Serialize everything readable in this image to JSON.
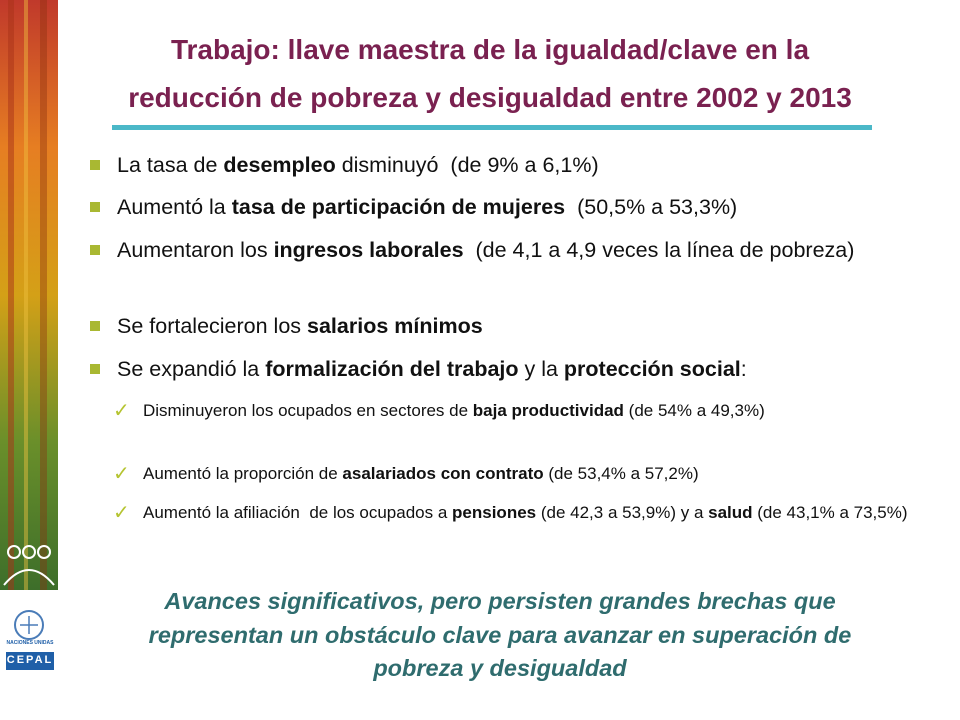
{
  "title": {
    "lines": [
      "Trabajo: llave maestra de la igualdad/clave en la",
      "reducción de pobreza y desigualdad entre 2002 y 2013"
    ]
  },
  "bullets": [
    {
      "level": 1,
      "parts": [
        {
          "text": "La tasa de "
        },
        {
          "text": "desempleo",
          "bold": true
        },
        {
          "text": " disminuyó  (de 9% a 6,1%)"
        }
      ]
    },
    {
      "level": 1,
      "parts": [
        {
          "text": "Aumentó la "
        },
        {
          "text": "tasa de participación de mujeres",
          "bold": true
        },
        {
          "text": "  (50,5% a 53,3%)"
        }
      ]
    },
    {
      "level": 1,
      "parts": [
        {
          "text": "Aumentaron los "
        },
        {
          "text": "ingresos laborales",
          "bold": true
        },
        {
          "text": "  (de 4,1 a 4,9 veces la línea de pobreza)"
        }
      ]
    },
    {
      "level": 1,
      "parts": [
        {
          "text": "Se fortalecieron los "
        },
        {
          "text": "salarios mínimos",
          "bold": true
        }
      ]
    },
    {
      "level": 1,
      "parts": [
        {
          "text": "Se expandió la "
        },
        {
          "text": "formalización del trabajo",
          "bold": true
        },
        {
          "text": " y la "
        },
        {
          "text": "protección social",
          "bold": true
        },
        {
          "text": ":"
        }
      ]
    },
    {
      "level": 2,
      "parts": [
        {
          "text": "Disminuyeron los ocupados en sectores de "
        },
        {
          "text": "baja productividad",
          "bold": true
        },
        {
          "text": " (de 54% a 49,3%)"
        }
      ]
    },
    {
      "level": 2,
      "parts": [
        {
          "text": "Aumentó la proporción de "
        },
        {
          "text": "asalariados con contrato",
          "bold": true
        },
        {
          "text": " (de 53,4% a 57,2%)"
        }
      ]
    },
    {
      "level": 2,
      "parts": [
        {
          "text": "Aumentó la afiliación  de los ocupados a "
        },
        {
          "text": "pensiones",
          "bold": true
        },
        {
          "text": " (de 42,3 a 53,9%) y a "
        },
        {
          "text": "salud",
          "bold": true
        },
        {
          "text": " (de 43,1% a 73,5%)"
        }
      ]
    }
  ],
  "conclusion": {
    "lines": [
      "Avances significativos, pero persisten grandes brechas que",
      "representan un obstáculo clave para avanzar en superación de",
      "pobreza y desigualdad"
    ]
  },
  "logo": {
    "org": "NACIONES UNIDAS",
    "acronym": "CEPAL"
  }
}
